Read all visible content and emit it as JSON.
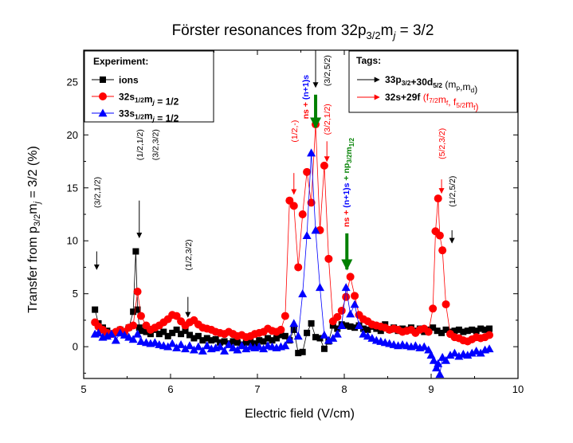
{
  "chart_data": {
    "type": "scatter",
    "title": {
      "pre": "Förster resonances from 32p",
      "sub": "3/2",
      "mid": "m",
      "sub2": "j",
      "post": " = 3/2"
    },
    "xlabel": "Electric field (V/cm)",
    "ylabel": {
      "pre": "Transfer from p",
      "sub": "3/2",
      "mid": "m",
      "sub2": "j",
      "post": " = 3/2 (%)"
    },
    "xlim": [
      5,
      10
    ],
    "ylim": [
      -3,
      28
    ],
    "xticks": [
      "5",
      "6",
      "7",
      "8",
      "9",
      "10"
    ],
    "yticks": [
      "0",
      "5",
      "10",
      "15",
      "20",
      "25"
    ],
    "legend_position": "top-left",
    "legend_title": "Experiment:",
    "series": [
      {
        "name": "ions",
        "color": "#000000",
        "marker": "square",
        "connected": true,
        "x": [
          5.13,
          5.17,
          5.22,
          5.27,
          5.32,
          5.37,
          5.42,
          5.47,
          5.52,
          5.57,
          5.6,
          5.62,
          5.64,
          5.67,
          5.72,
          5.77,
          5.82,
          5.87,
          5.92,
          5.97,
          6.02,
          6.07,
          6.12,
          6.17,
          6.22,
          6.27,
          6.32,
          6.37,
          6.42,
          6.47,
          6.52,
          6.57,
          6.62,
          6.67,
          6.72,
          6.77,
          6.82,
          6.87,
          6.92,
          6.97,
          7.02,
          7.07,
          7.12,
          7.17,
          7.22,
          7.27,
          7.32,
          7.37,
          7.42,
          7.47,
          7.52,
          7.57,
          7.62,
          7.67,
          7.72,
          7.77,
          7.82,
          7.87,
          7.92,
          7.97,
          8.02,
          8.07,
          8.12,
          8.17,
          8.22,
          8.27,
          8.32,
          8.37,
          8.42,
          8.47,
          8.52,
          8.57,
          8.62,
          8.67,
          8.72,
          8.77,
          8.82,
          8.87,
          8.92,
          8.97,
          9.02,
          9.07,
          9.12,
          9.17,
          9.22,
          9.27,
          9.32,
          9.37,
          9.42,
          9.47,
          9.52,
          9.57,
          9.62,
          9.67
        ],
        "y": [
          3.5,
          2.2,
          1.8,
          1.5,
          1.2,
          1.3,
          1.6,
          1.4,
          1.8,
          3.3,
          9.0,
          3.5,
          1.8,
          1.5,
          1.4,
          1.2,
          1.6,
          1.2,
          1.4,
          1.0,
          1.3,
          1.6,
          1.2,
          1.5,
          1.1,
          0.8,
          1.0,
          0.6,
          0.8,
          0.6,
          0.7,
          0.4,
          0.5,
          0.3,
          0.5,
          0.4,
          0.2,
          0.4,
          0.5,
          0.3,
          0.6,
          0.5,
          0.8,
          0.6,
          0.8,
          1.1,
          1.0,
          0.6,
          1.6,
          -0.6,
          -0.5,
          1.3,
          2.2,
          0.9,
          0.8,
          -0.2,
          0.5,
          2.0,
          1.7,
          2.1,
          2.0,
          1.9,
          1.8,
          2.0,
          1.7,
          1.6,
          1.9,
          1.7,
          1.5,
          2.1,
          1.6,
          1.8,
          1.5,
          1.7,
          1.6,
          1.8,
          1.5,
          1.7,
          1.4,
          1.6,
          1.8,
          1.5,
          1.3,
          1.6,
          1.4,
          1.5,
          1.6,
          1.4,
          1.5,
          1.6,
          1.5,
          1.7,
          1.6,
          1.7
        ]
      },
      {
        "name": "32s1/2mj = 1/2",
        "color": "#ff0000",
        "marker": "circle",
        "connected": true,
        "x": [
          5.13,
          5.17,
          5.22,
          5.27,
          5.32,
          5.37,
          5.42,
          5.47,
          5.52,
          5.57,
          5.62,
          5.66,
          5.72,
          5.77,
          5.82,
          5.87,
          5.92,
          5.97,
          6.02,
          6.07,
          6.12,
          6.17,
          6.22,
          6.27,
          6.32,
          6.37,
          6.42,
          6.47,
          6.52,
          6.57,
          6.62,
          6.67,
          6.72,
          6.77,
          6.82,
          6.87,
          6.92,
          6.97,
          7.02,
          7.07,
          7.12,
          7.17,
          7.22,
          7.27,
          7.32,
          7.37,
          7.42,
          7.47,
          7.52,
          7.57,
          7.62,
          7.67,
          7.72,
          7.77,
          7.82,
          7.87,
          7.92,
          7.97,
          8.02,
          8.07,
          8.12,
          8.17,
          8.22,
          8.27,
          8.32,
          8.37,
          8.42,
          8.47,
          8.52,
          8.57,
          8.62,
          8.67,
          8.72,
          8.77,
          8.82,
          8.87,
          8.92,
          8.97,
          9.02,
          9.05,
          9.08,
          9.1,
          9.13,
          9.17,
          9.22,
          9.27,
          9.32,
          9.37,
          9.42,
          9.47,
          9.52,
          9.57,
          9.62,
          9.67
        ],
        "y": [
          2.3,
          1.9,
          1.6,
          1.3,
          1.2,
          1.4,
          1.6,
          1.4,
          1.8,
          2.0,
          5.2,
          2.9,
          2.0,
          1.6,
          1.8,
          2.0,
          2.3,
          2.6,
          3.0,
          2.9,
          2.4,
          2.0,
          2.3,
          2.5,
          2.1,
          1.8,
          1.7,
          1.6,
          1.4,
          1.3,
          1.2,
          1.4,
          1.2,
          1.0,
          1.1,
          0.9,
          1.0,
          1.2,
          1.3,
          1.4,
          1.7,
          1.5,
          1.4,
          1.6,
          2.9,
          13.8,
          13.3,
          7.5,
          12.5,
          16.5,
          13.6,
          21.0,
          11.0,
          17.1,
          8.3,
          2.4,
          2.8,
          3.4,
          4.7,
          6.6,
          4.8,
          3.0,
          2.6,
          2.4,
          2.1,
          2.0,
          1.9,
          1.8,
          1.6,
          1.7,
          1.6,
          1.4,
          1.5,
          1.6,
          1.3,
          1.6,
          1.7,
          1.4,
          3.6,
          10.9,
          14.0,
          10.5,
          9.1,
          4.0,
          1.2,
          0.9,
          0.8,
          0.6,
          0.5,
          0.7,
          0.9,
          0.8,
          0.9,
          1.1
        ]
      },
      {
        "name": "33s1/2mj = 1/2",
        "color": "#0000ff",
        "marker": "triangle",
        "connected": true,
        "x": [
          5.13,
          5.17,
          5.22,
          5.27,
          5.32,
          5.37,
          5.42,
          5.47,
          5.52,
          5.57,
          5.62,
          5.66,
          5.72,
          5.77,
          5.82,
          5.87,
          5.92,
          5.97,
          6.02,
          6.07,
          6.12,
          6.17,
          6.22,
          6.27,
          6.32,
          6.37,
          6.42,
          6.47,
          6.52,
          6.57,
          6.62,
          6.67,
          6.72,
          6.77,
          6.82,
          6.87,
          6.92,
          6.97,
          7.02,
          7.07,
          7.12,
          7.17,
          7.22,
          7.27,
          7.32,
          7.37,
          7.42,
          7.47,
          7.52,
          7.57,
          7.62,
          7.67,
          7.72,
          7.77,
          7.82,
          7.87,
          7.92,
          7.97,
          8.02,
          8.07,
          8.12,
          8.17,
          8.22,
          8.27,
          8.32,
          8.37,
          8.42,
          8.47,
          8.52,
          8.57,
          8.62,
          8.67,
          8.72,
          8.77,
          8.82,
          8.87,
          8.92,
          8.97,
          9.0,
          9.03,
          9.06,
          9.08,
          9.1,
          9.13,
          9.17,
          9.22,
          9.27,
          9.32,
          9.37,
          9.42,
          9.47,
          9.52,
          9.57,
          9.62,
          9.67
        ],
        "y": [
          1.2,
          1.3,
          0.9,
          1.0,
          1.2,
          0.6,
          1.3,
          1.1,
          0.9,
          0.7,
          1.2,
          0.5,
          0.4,
          0.3,
          0.4,
          0.2,
          0.1,
          0.0,
          0.3,
          -0.1,
          0.2,
          -0.2,
          0.1,
          -0.3,
          0.0,
          -0.4,
          0.1,
          -0.2,
          -0.1,
          0.0,
          -0.4,
          0.2,
          -0.1,
          -0.3,
          0.1,
          -0.2,
          0.0,
          -0.1,
          0.0,
          -0.2,
          0.1,
          0.0,
          -0.1,
          0.0,
          0.1,
          0.7,
          2.2,
          1.0,
          5.0,
          10.5,
          18.3,
          11.0,
          5.6,
          1.1,
          0.6,
          0.8,
          1.2,
          2.0,
          5.6,
          3.1,
          4.0,
          2.0,
          1.2,
          1.0,
          0.8,
          0.6,
          0.5,
          0.4,
          0.3,
          0.2,
          0.1,
          0.2,
          0.1,
          0.0,
          0.1,
          -0.1,
          0.0,
          -0.3,
          -0.8,
          -1.3,
          -2.0,
          -1.6,
          -2.6,
          -1.0,
          -1.3,
          -0.8,
          -0.6,
          -0.9,
          -0.7,
          -0.8,
          -0.6,
          -0.4,
          -0.6,
          -0.3,
          -0.2
        ]
      }
    ],
    "tags_box": {
      "title": "Tags:",
      "entries": [
        {
          "color": "#000000",
          "label_parts": [
            {
              "t": "33p",
              "s": ""
            },
            {
              "t": "3/2",
              "s": "sub"
            },
            {
              "t": "+30d",
              "s": ""
            },
            {
              "t": "5/2",
              "s": "sub"
            }
          ],
          "note_parts": [
            {
              "t": "(m",
              "s": ""
            },
            {
              "t": "p",
              "s": "sub"
            },
            {
              "t": ",m",
              "s": ""
            },
            {
              "t": "d",
              "s": "sub"
            },
            {
              "t": ")",
              "s": ""
            }
          ]
        },
        {
          "color": "#ff0000",
          "label_parts": [
            {
              "t": "32s+29f",
              "s": ""
            }
          ],
          "note_parts": [
            {
              "t": "(f",
              "s": ""
            },
            {
              "t": "7/2",
              "s": "sub"
            },
            {
              "t": "m",
              "s": ""
            },
            {
              "t": "f",
              "s": "sub"
            },
            {
              "t": ", f",
              "s": ""
            },
            {
              "t": "5/2",
              "s": "sub"
            },
            {
              "t": "m",
              "s": ""
            },
            {
              "t": "f",
              "s": "sub"
            },
            {
              "t": ")",
              "s": ""
            }
          ]
        }
      ]
    },
    "annotations": [
      {
        "text": "(3/2,1/2)",
        "color": "#000000",
        "x": 5.15,
        "text_y": 13.1,
        "arrow_from": 9.0,
        "arrow_to": 7.3
      },
      {
        "text": "(1/2,1/2)",
        "color": "#000000",
        "x": 5.64,
        "text_y": 17.6,
        "arrow_from": 13.8,
        "arrow_to": 10.3
      },
      {
        "text": "(3/2,3/2)",
        "color": "#000000",
        "x": 5.82,
        "text_y": 17.6,
        "arrow_from": null,
        "arrow_to": null
      },
      {
        "text": "(1/2,3/2)",
        "color": "#000000",
        "x": 6.2,
        "text_y": 7.2,
        "arrow_from": 4.7,
        "arrow_to": 2.8
      },
      {
        "text": "(1/2,-)",
        "color": "#ff0000",
        "x": 7.42,
        "text_y": 19.3,
        "arrow_from": 16.4,
        "arrow_to": 14.4
      },
      {
        "text": "(3/2,1/2)",
        "color": "#ff0000",
        "x": 7.8,
        "text_y": 20.0,
        "arrow_from": 19.4,
        "arrow_to": 17.5
      },
      {
        "text": "(3/2,5/2)",
        "color": "#000000",
        "x": 7.8,
        "text_y": 24.6,
        "arrow_from": null,
        "arrow_to": null
      },
      {
        "text": "(5/2,3/2)",
        "color": "#ff0000",
        "x": 9.12,
        "text_y": 17.7,
        "arrow_from": 15.8,
        "arrow_to": 14.5
      },
      {
        "text": "(1/2,5/2)",
        "color": "#000000",
        "x": 9.24,
        "text_y": 13.2,
        "arrow_from": 11.0,
        "arrow_to": 9.8
      }
    ],
    "vertical_labels": [
      {
        "color_parts": [
          {
            "t": "ns + ",
            "c": "#ff0000"
          },
          {
            "t": "(n+1)s",
            "c": "#0000ff"
          }
        ],
        "x": 7.55,
        "text_y": 21.5
      },
      {
        "color_parts": [
          {
            "t": "ns + ",
            "c": "#ff0000"
          },
          {
            "t": "(n+1)s",
            "c": "#0000ff"
          },
          {
            "t": " + np",
            "c": "#008000"
          },
          {
            "t": "3/2",
            "c": "#008000",
            "s": "sub"
          },
          {
            "t": "m",
            "c": "#008000"
          },
          {
            "t": "1/2",
            "c": "#008000",
            "s": "sub"
          }
        ],
        "x": 8.02,
        "text_y": 11.3
      }
    ],
    "big_arrows": [
      {
        "color": "#008000",
        "x": 7.67,
        "from": 23.8,
        "to": 20.7
      },
      {
        "color": "#008000",
        "x": 8.03,
        "from": 10.7,
        "to": 7.3
      }
    ],
    "thin_arrows": [
      {
        "color": "#000000",
        "x": 7.67,
        "from": 28.0,
        "to": 24.5
      }
    ]
  }
}
